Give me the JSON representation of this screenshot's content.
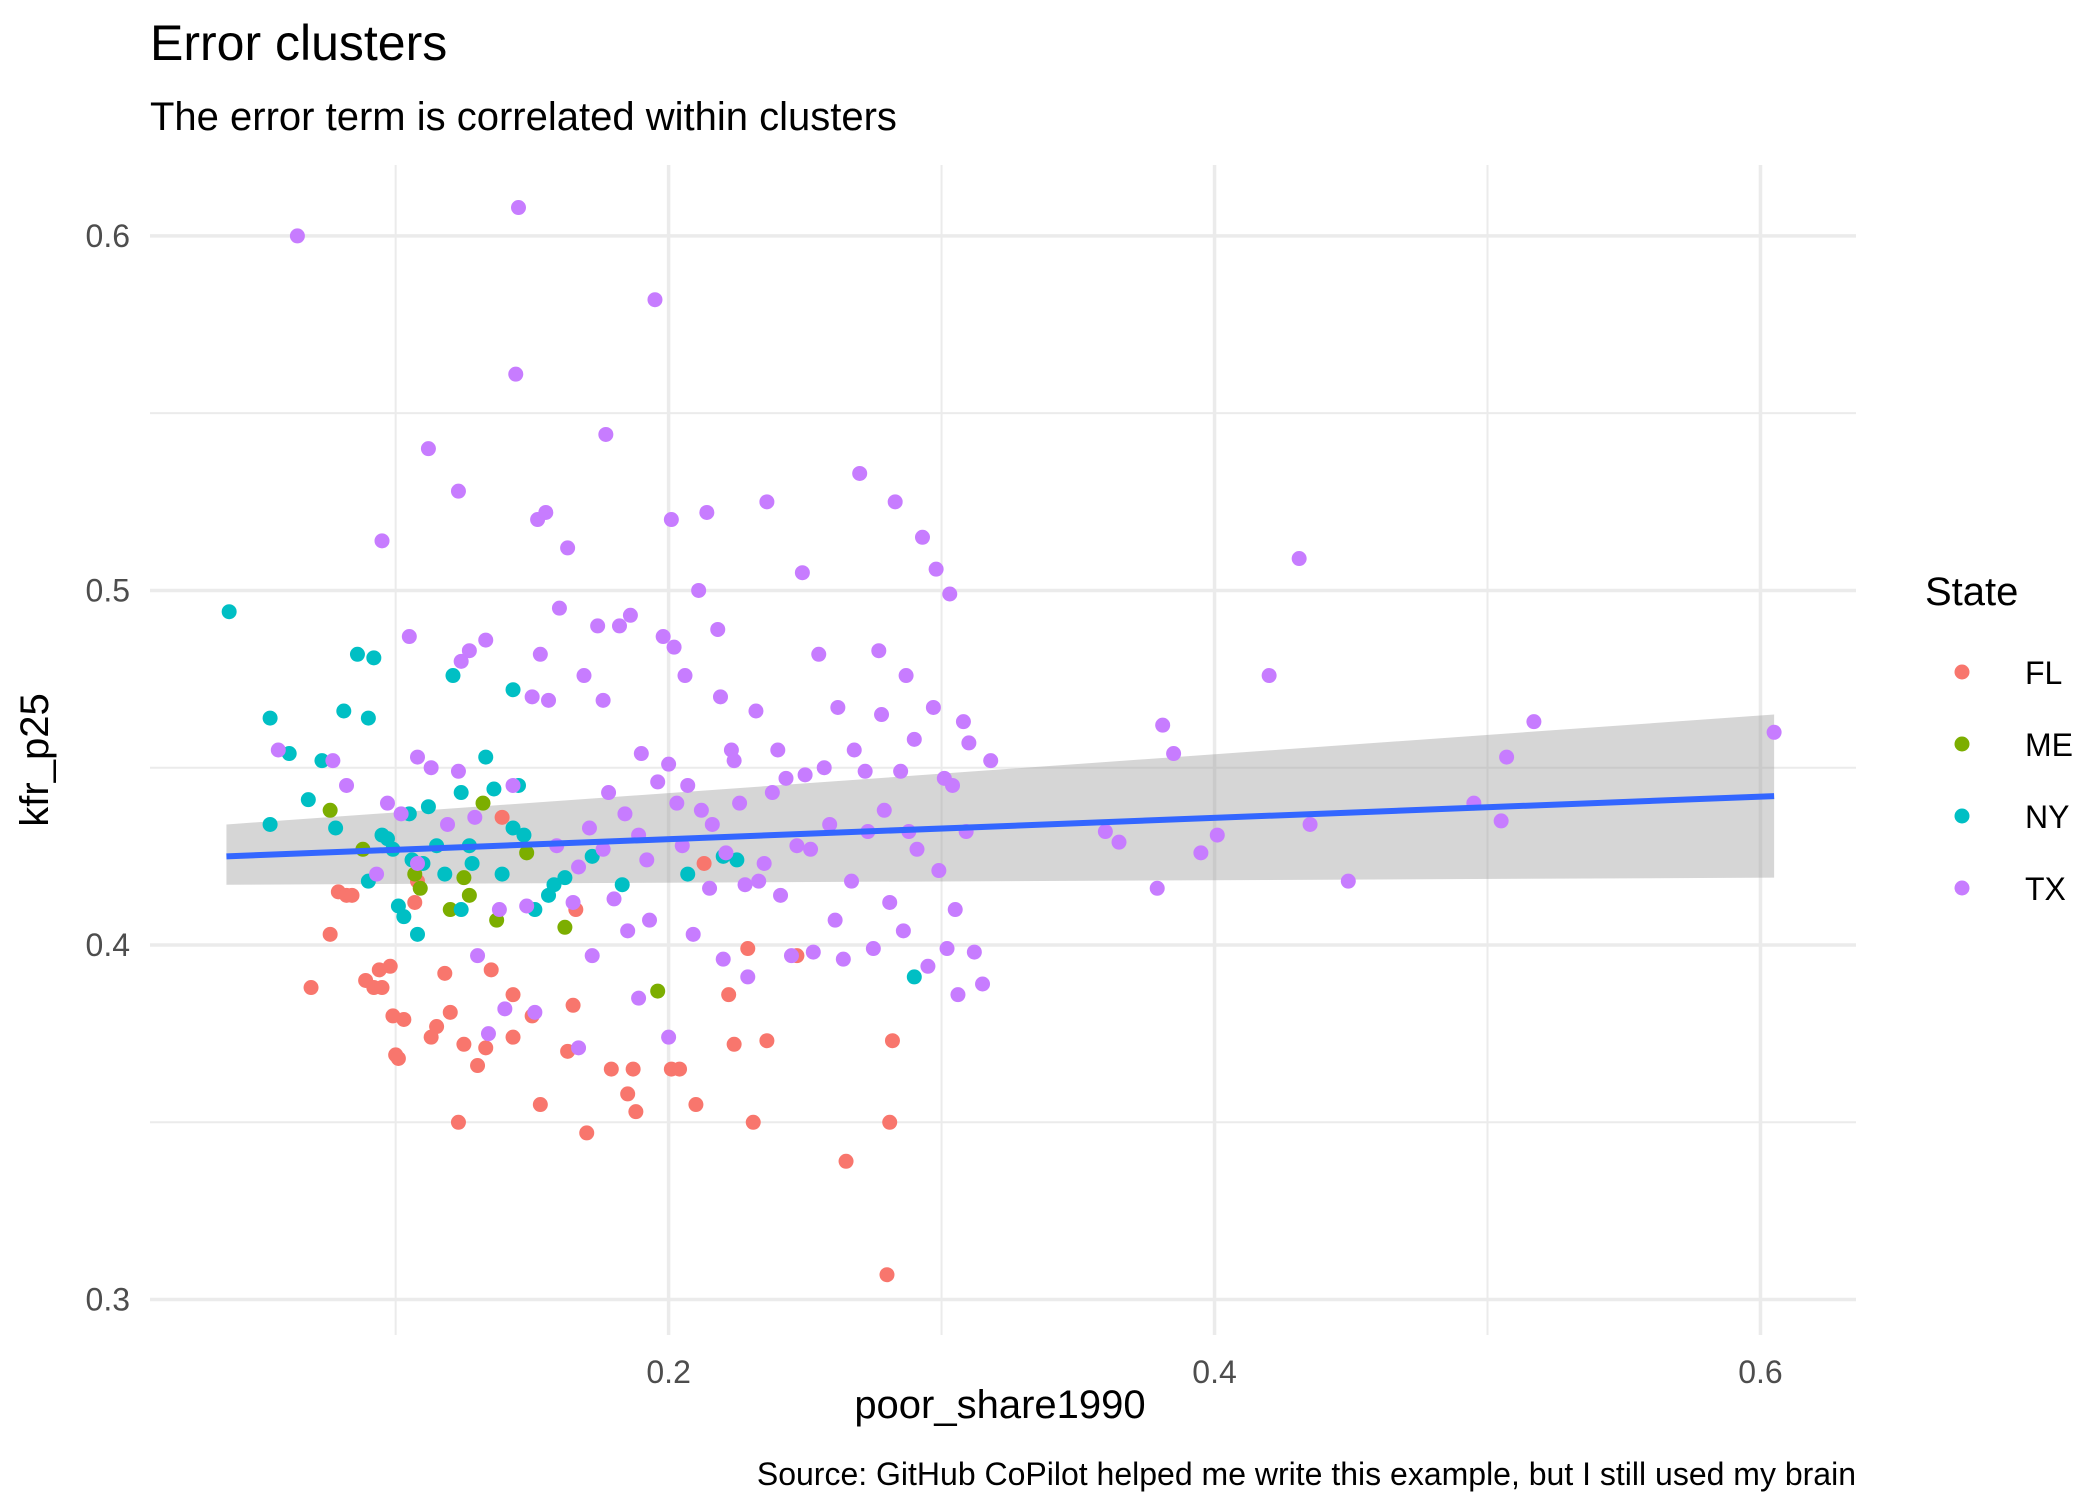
{
  "chart_data": {
    "type": "scatter",
    "title": "Error clusters",
    "subtitle": "The error term is correlated within clusters",
    "xlabel": "poor_share1990",
    "ylabel": "kfr_p25",
    "caption": "Source: GitHub CoPilot helped me write this example, but I still used my brain",
    "xlim": [
      0.01,
      0.635
    ],
    "ylim": [
      0.29,
      0.62
    ],
    "x_ticks": [
      0.2,
      0.4,
      0.6
    ],
    "x_tick_labels": [
      "0.2",
      "0.4",
      "0.6"
    ],
    "y_ticks": [
      0.3,
      0.4,
      0.5,
      0.6
    ],
    "y_tick_labels": [
      "0.3",
      "0.4",
      "0.5",
      "0.6"
    ],
    "grid": true,
    "legend": {
      "title": "State",
      "position": "right"
    },
    "series": [
      {
        "name": "FL",
        "color": "#F8766D",
        "points": [
          [
            0.069,
            0.388
          ],
          [
            0.076,
            0.403
          ],
          [
            0.079,
            0.415
          ],
          [
            0.082,
            0.414
          ],
          [
            0.084,
            0.414
          ],
          [
            0.089,
            0.39
          ],
          [
            0.092,
            0.388
          ],
          [
            0.094,
            0.393
          ],
          [
            0.095,
            0.388
          ],
          [
            0.098,
            0.394
          ],
          [
            0.099,
            0.38
          ],
          [
            0.1,
            0.369
          ],
          [
            0.101,
            0.368
          ],
          [
            0.103,
            0.379
          ],
          [
            0.107,
            0.412
          ],
          [
            0.113,
            0.374
          ],
          [
            0.115,
            0.377
          ],
          [
            0.118,
            0.392
          ],
          [
            0.12,
            0.381
          ],
          [
            0.123,
            0.35
          ],
          [
            0.125,
            0.372
          ],
          [
            0.13,
            0.366
          ],
          [
            0.133,
            0.371
          ],
          [
            0.135,
            0.393
          ],
          [
            0.143,
            0.386
          ],
          [
            0.143,
            0.374
          ],
          [
            0.15,
            0.38
          ],
          [
            0.153,
            0.355
          ],
          [
            0.163,
            0.37
          ],
          [
            0.165,
            0.383
          ],
          [
            0.17,
            0.347
          ],
          [
            0.179,
            0.365
          ],
          [
            0.185,
            0.358
          ],
          [
            0.187,
            0.365
          ],
          [
            0.188,
            0.353
          ],
          [
            0.201,
            0.365
          ],
          [
            0.204,
            0.365
          ],
          [
            0.21,
            0.355
          ],
          [
            0.213,
            0.423
          ],
          [
            0.222,
            0.386
          ],
          [
            0.224,
            0.372
          ],
          [
            0.229,
            0.399
          ],
          [
            0.231,
            0.35
          ],
          [
            0.236,
            0.373
          ],
          [
            0.247,
            0.397
          ],
          [
            0.265,
            0.339
          ],
          [
            0.28,
            0.307
          ],
          [
            0.281,
            0.35
          ],
          [
            0.282,
            0.373
          ],
          [
            0.139,
            0.436
          ],
          [
            0.166,
            0.41
          ],
          [
            0.108,
            0.418
          ]
        ]
      },
      {
        "name": "ME",
        "color": "#7CAE00",
        "points": [
          [
            0.076,
            0.438
          ],
          [
            0.088,
            0.427
          ],
          [
            0.107,
            0.42
          ],
          [
            0.109,
            0.416
          ],
          [
            0.12,
            0.41
          ],
          [
            0.125,
            0.419
          ],
          [
            0.127,
            0.414
          ],
          [
            0.132,
            0.44
          ],
          [
            0.137,
            0.407
          ],
          [
            0.148,
            0.426
          ],
          [
            0.162,
            0.405
          ],
          [
            0.196,
            0.387
          ]
        ]
      },
      {
        "name": "NY",
        "color": "#00BFC4",
        "points": [
          [
            0.039,
            0.494
          ],
          [
            0.054,
            0.464
          ],
          [
            0.054,
            0.434
          ],
          [
            0.061,
            0.454
          ],
          [
            0.068,
            0.441
          ],
          [
            0.073,
            0.452
          ],
          [
            0.078,
            0.433
          ],
          [
            0.081,
            0.466
          ],
          [
            0.086,
            0.482
          ],
          [
            0.09,
            0.418
          ],
          [
            0.09,
            0.464
          ],
          [
            0.092,
            0.481
          ],
          [
            0.095,
            0.431
          ],
          [
            0.097,
            0.43
          ],
          [
            0.099,
            0.427
          ],
          [
            0.101,
            0.411
          ],
          [
            0.103,
            0.408
          ],
          [
            0.105,
            0.437
          ],
          [
            0.106,
            0.424
          ],
          [
            0.108,
            0.403
          ],
          [
            0.11,
            0.423
          ],
          [
            0.112,
            0.439
          ],
          [
            0.115,
            0.428
          ],
          [
            0.118,
            0.42
          ],
          [
            0.121,
            0.476
          ],
          [
            0.124,
            0.443
          ],
          [
            0.124,
            0.41
          ],
          [
            0.127,
            0.428
          ],
          [
            0.128,
            0.423
          ],
          [
            0.133,
            0.453
          ],
          [
            0.136,
            0.444
          ],
          [
            0.139,
            0.42
          ],
          [
            0.143,
            0.472
          ],
          [
            0.143,
            0.433
          ],
          [
            0.145,
            0.445
          ],
          [
            0.147,
            0.431
          ],
          [
            0.151,
            0.41
          ],
          [
            0.156,
            0.414
          ],
          [
            0.158,
            0.417
          ],
          [
            0.162,
            0.419
          ],
          [
            0.172,
            0.425
          ],
          [
            0.183,
            0.417
          ],
          [
            0.207,
            0.42
          ],
          [
            0.22,
            0.425
          ],
          [
            0.225,
            0.424
          ],
          [
            0.29,
            0.391
          ]
        ]
      },
      {
        "name": "TX",
        "color": "#C77CFF",
        "points": [
          [
            0.057,
            0.455
          ],
          [
            0.064,
            0.6
          ],
          [
            0.077,
            0.452
          ],
          [
            0.082,
            0.445
          ],
          [
            0.093,
            0.42
          ],
          [
            0.095,
            0.514
          ],
          [
            0.097,
            0.44
          ],
          [
            0.102,
            0.437
          ],
          [
            0.105,
            0.487
          ],
          [
            0.108,
            0.453
          ],
          [
            0.108,
            0.423
          ],
          [
            0.112,
            0.54
          ],
          [
            0.113,
            0.45
          ],
          [
            0.119,
            0.434
          ],
          [
            0.123,
            0.528
          ],
          [
            0.123,
            0.449
          ],
          [
            0.124,
            0.48
          ],
          [
            0.127,
            0.483
          ],
          [
            0.129,
            0.436
          ],
          [
            0.133,
            0.486
          ],
          [
            0.134,
            0.375
          ],
          [
            0.138,
            0.41
          ],
          [
            0.143,
            0.445
          ],
          [
            0.144,
            0.561
          ],
          [
            0.145,
            0.608
          ],
          [
            0.148,
            0.411
          ],
          [
            0.15,
            0.47
          ],
          [
            0.151,
            0.381
          ],
          [
            0.152,
            0.52
          ],
          [
            0.153,
            0.482
          ],
          [
            0.155,
            0.522
          ],
          [
            0.156,
            0.469
          ],
          [
            0.159,
            0.428
          ],
          [
            0.16,
            0.495
          ],
          [
            0.163,
            0.512
          ],
          [
            0.165,
            0.412
          ],
          [
            0.167,
            0.422
          ],
          [
            0.169,
            0.476
          ],
          [
            0.171,
            0.433
          ],
          [
            0.172,
            0.397
          ],
          [
            0.174,
            0.49
          ],
          [
            0.176,
            0.469
          ],
          [
            0.177,
            0.544
          ],
          [
            0.178,
            0.443
          ],
          [
            0.18,
            0.413
          ],
          [
            0.182,
            0.49
          ],
          [
            0.184,
            0.437
          ],
          [
            0.185,
            0.404
          ],
          [
            0.186,
            0.493
          ],
          [
            0.189,
            0.431
          ],
          [
            0.19,
            0.454
          ],
          [
            0.192,
            0.424
          ],
          [
            0.193,
            0.407
          ],
          [
            0.195,
            0.582
          ],
          [
            0.196,
            0.446
          ],
          [
            0.198,
            0.487
          ],
          [
            0.2,
            0.451
          ],
          [
            0.201,
            0.52
          ],
          [
            0.202,
            0.484
          ],
          [
            0.203,
            0.44
          ],
          [
            0.205,
            0.428
          ],
          [
            0.206,
            0.476
          ],
          [
            0.207,
            0.445
          ],
          [
            0.209,
            0.403
          ],
          [
            0.211,
            0.5
          ],
          [
            0.212,
            0.438
          ],
          [
            0.214,
            0.522
          ],
          [
            0.215,
            0.416
          ],
          [
            0.216,
            0.434
          ],
          [
            0.218,
            0.489
          ],
          [
            0.219,
            0.47
          ],
          [
            0.22,
            0.396
          ],
          [
            0.221,
            0.426
          ],
          [
            0.223,
            0.455
          ],
          [
            0.224,
            0.452
          ],
          [
            0.226,
            0.44
          ],
          [
            0.228,
            0.417
          ],
          [
            0.229,
            0.391
          ],
          [
            0.232,
            0.466
          ],
          [
            0.233,
            0.418
          ],
          [
            0.235,
            0.423
          ],
          [
            0.236,
            0.525
          ],
          [
            0.238,
            0.443
          ],
          [
            0.24,
            0.455
          ],
          [
            0.241,
            0.414
          ],
          [
            0.243,
            0.447
          ],
          [
            0.245,
            0.397
          ],
          [
            0.247,
            0.428
          ],
          [
            0.249,
            0.505
          ],
          [
            0.25,
            0.448
          ],
          [
            0.252,
            0.427
          ],
          [
            0.253,
            0.398
          ],
          [
            0.255,
            0.482
          ],
          [
            0.257,
            0.45
          ],
          [
            0.259,
            0.434
          ],
          [
            0.261,
            0.407
          ],
          [
            0.262,
            0.467
          ],
          [
            0.264,
            0.396
          ],
          [
            0.267,
            0.418
          ],
          [
            0.268,
            0.455
          ],
          [
            0.27,
            0.533
          ],
          [
            0.272,
            0.449
          ],
          [
            0.273,
            0.432
          ],
          [
            0.275,
            0.399
          ],
          [
            0.277,
            0.483
          ],
          [
            0.278,
            0.465
          ],
          [
            0.279,
            0.438
          ],
          [
            0.281,
            0.412
          ],
          [
            0.283,
            0.525
          ],
          [
            0.285,
            0.449
          ],
          [
            0.286,
            0.404
          ],
          [
            0.287,
            0.476
          ],
          [
            0.288,
            0.432
          ],
          [
            0.29,
            0.458
          ],
          [
            0.291,
            0.427
          ],
          [
            0.293,
            0.515
          ],
          [
            0.295,
            0.394
          ],
          [
            0.297,
            0.467
          ],
          [
            0.298,
            0.506
          ],
          [
            0.299,
            0.421
          ],
          [
            0.301,
            0.447
          ],
          [
            0.302,
            0.399
          ],
          [
            0.303,
            0.499
          ],
          [
            0.304,
            0.445
          ],
          [
            0.305,
            0.41
          ],
          [
            0.306,
            0.386
          ],
          [
            0.308,
            0.463
          ],
          [
            0.309,
            0.432
          ],
          [
            0.31,
            0.457
          ],
          [
            0.312,
            0.398
          ],
          [
            0.315,
            0.389
          ],
          [
            0.318,
            0.452
          ],
          [
            0.36,
            0.432
          ],
          [
            0.365,
            0.429
          ],
          [
            0.379,
            0.416
          ],
          [
            0.381,
            0.462
          ],
          [
            0.385,
            0.454
          ],
          [
            0.395,
            0.426
          ],
          [
            0.401,
            0.431
          ],
          [
            0.42,
            0.476
          ],
          [
            0.431,
            0.509
          ],
          [
            0.435,
            0.434
          ],
          [
            0.449,
            0.418
          ],
          [
            0.495,
            0.44
          ],
          [
            0.505,
            0.435
          ],
          [
            0.507,
            0.453
          ],
          [
            0.517,
            0.463
          ],
          [
            0.605,
            0.46
          ],
          [
            0.2,
            0.374
          ],
          [
            0.189,
            0.385
          ],
          [
            0.176,
            0.427
          ],
          [
            0.167,
            0.371
          ],
          [
            0.14,
            0.382
          ],
          [
            0.13,
            0.397
          ]
        ]
      }
    ],
    "smooth": {
      "color": "#3366FF",
      "band_color": "#999999",
      "x": [
        0.038,
        0.605
      ],
      "y": [
        0.425,
        0.442
      ],
      "ymin": [
        0.417,
        0.419
      ],
      "ymax": [
        0.434,
        0.465
      ]
    }
  }
}
